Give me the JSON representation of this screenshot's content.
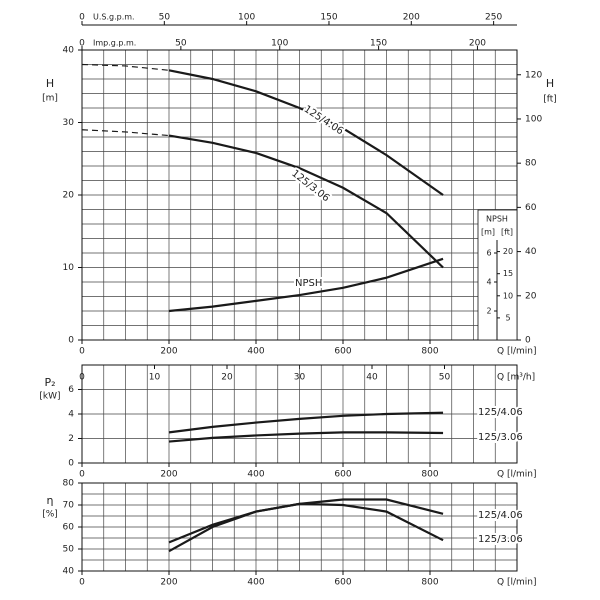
{
  "chart_data": [
    {
      "type": "line",
      "ylabel": "H",
      "yunit": "[m]",
      "y2label": "H",
      "y2unit": "[ft]",
      "xlabel": "Q [l/min]",
      "xlim": [
        0,
        1000
      ],
      "xticks": [
        0,
        200,
        400,
        600,
        800
      ],
      "ylim": [
        0,
        40
      ],
      "yticks": [
        0,
        10,
        20,
        30,
        40
      ],
      "y2lim": [
        0,
        131.2
      ],
      "y2ticks": [
        0,
        20,
        40,
        60,
        80,
        100,
        120
      ],
      "grid": true,
      "xgrid_step": 50,
      "ygrid_step": 2,
      "top_axes": [
        {
          "label": "U.S.g.p.m.",
          "lim": [
            0,
            264.2
          ],
          "ticks": [
            0,
            50,
            100,
            150,
            200,
            250
          ]
        },
        {
          "label": "Imp.g.p.m.",
          "lim": [
            0,
            220
          ],
          "ticks": [
            0,
            50,
            100,
            150,
            200
          ]
        }
      ],
      "bottom_axis": {
        "label": "Q [m³/h]",
        "lim": [
          0,
          60
        ],
        "ticks": [
          0,
          10,
          20,
          30,
          40,
          50
        ]
      },
      "npsh_axis": {
        "label": "NPSH",
        "m_unit": "[m]",
        "ft_unit": "[ft]",
        "m_lim": [
          0,
          20
        ],
        "m_ticks": [
          2,
          4,
          6
        ],
        "ft_lim": [
          0,
          65.6
        ],
        "ft_ticks": [
          5,
          10,
          15,
          20
        ]
      },
      "series": [
        {
          "style": "dashed",
          "color": "#1a1a1a",
          "x": [
            0,
            100,
            200
          ],
          "values": [
            38,
            37.8,
            37.2
          ]
        },
        {
          "name": "125/4.06",
          "color": "#1a1a1a",
          "x": [
            200,
            300,
            400,
            500,
            600,
            700,
            830
          ],
          "values": [
            37.2,
            36,
            34.3,
            32,
            29.2,
            25.5,
            20
          ]
        },
        {
          "style": "dashed",
          "color": "#1a1a1a",
          "x": [
            0,
            100,
            200
          ],
          "values": [
            29,
            28.7,
            28.2
          ]
        },
        {
          "name": "125/3.06",
          "color": "#1a1a1a",
          "x": [
            200,
            300,
            400,
            500,
            600,
            700,
            830
          ],
          "values": [
            28.2,
            27.2,
            25.8,
            23.7,
            21,
            17.5,
            10
          ]
        },
        {
          "name": "NPSH",
          "axis": "npsh",
          "color": "#1a1a1a",
          "x": [
            200,
            300,
            400,
            500,
            600,
            700,
            830
          ],
          "values": [
            2,
            2.3,
            2.7,
            3.1,
            3.6,
            4.3,
            5.6
          ]
        }
      ]
    },
    {
      "type": "line",
      "ylabel": "P₂",
      "yunit": "[kW]",
      "xlabel": "Q [l/min]",
      "xlim": [
        0,
        1000
      ],
      "xticks": [
        0,
        200,
        400,
        600,
        800
      ],
      "ylim": [
        0,
        8
      ],
      "yticks": [
        0,
        2,
        4,
        6
      ],
      "grid": true,
      "xgrid_step": 50,
      "ygrid_step": 2,
      "series": [
        {
          "name": "125/4.06",
          "color": "#1a1a1a",
          "x": [
            200,
            300,
            400,
            500,
            600,
            700,
            830
          ],
          "values": [
            2.5,
            2.95,
            3.3,
            3.6,
            3.85,
            4.0,
            4.1
          ]
        },
        {
          "name": "125/3.06",
          "color": "#1a1a1a",
          "x": [
            200,
            300,
            400,
            500,
            600,
            700,
            830
          ],
          "values": [
            1.75,
            2.05,
            2.25,
            2.4,
            2.5,
            2.5,
            2.45
          ]
        }
      ]
    },
    {
      "type": "line",
      "ylabel": "η",
      "yunit": "[%]",
      "xlabel": "Q [l/min]",
      "xlim": [
        0,
        1000
      ],
      "xticks": [
        0,
        200,
        400,
        600,
        800
      ],
      "ylim": [
        40,
        80
      ],
      "yticks": [
        40,
        50,
        60,
        70,
        80
      ],
      "grid": true,
      "xgrid_step": 50,
      "ygrid_step": 5,
      "series": [
        {
          "name": "125/4.06",
          "color": "#1a1a1a",
          "x": [
            200,
            300,
            400,
            500,
            600,
            700,
            830
          ],
          "values": [
            53,
            61,
            67,
            70.5,
            72.5,
            72.5,
            66
          ]
        },
        {
          "name": "125/3.06",
          "color": "#1a1a1a",
          "x": [
            200,
            300,
            400,
            500,
            600,
            700,
            830
          ],
          "values": [
            49,
            60,
            67,
            70.5,
            70,
            67,
            54
          ]
        }
      ]
    }
  ]
}
